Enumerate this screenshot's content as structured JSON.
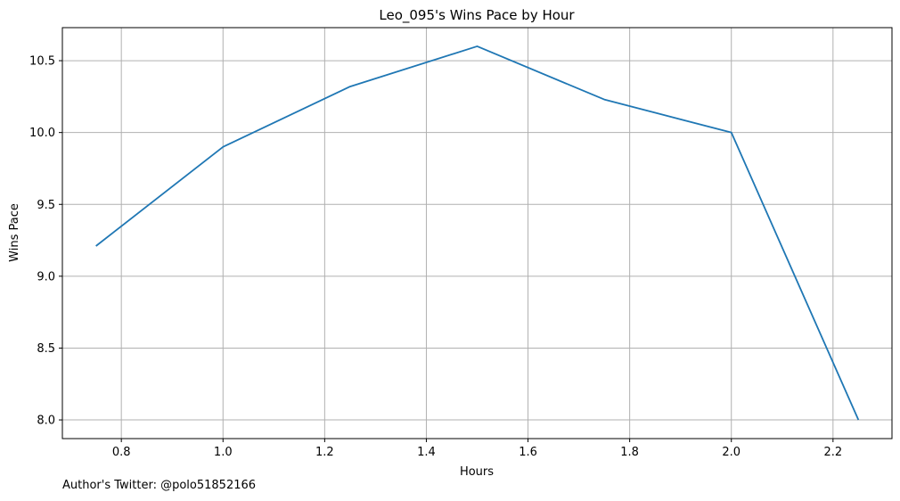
{
  "chart_data": {
    "type": "line",
    "title": "Leo_095's Wins Pace by Hour",
    "xlabel": "Hours",
    "ylabel": "Wins Pace",
    "xlim": [
      0.684,
      2.316
    ],
    "ylim": [
      7.87,
      10.73
    ],
    "xticks": [
      0.8,
      1.0,
      1.2,
      1.4,
      1.6,
      1.8,
      2.0,
      2.2
    ],
    "xtick_labels": [
      "0.8",
      "1.0",
      "1.2",
      "1.4",
      "1.6",
      "1.8",
      "2.0",
      "2.2"
    ],
    "yticks": [
      8.0,
      8.5,
      9.0,
      9.5,
      10.0,
      10.5
    ],
    "ytick_labels": [
      "8.0",
      "8.5",
      "9.0",
      "9.5",
      "10.0",
      "10.5"
    ],
    "grid": true,
    "line_color": "#1f77b4",
    "grid_color": "#b0b0b0",
    "x": [
      0.75,
      1.0,
      1.25,
      1.5,
      1.75,
      2.0,
      2.25
    ],
    "y": [
      9.21,
      9.9,
      10.32,
      10.6,
      10.23,
      10.0,
      8.0
    ]
  },
  "footnote": "Author's Twitter: @polo51852166"
}
